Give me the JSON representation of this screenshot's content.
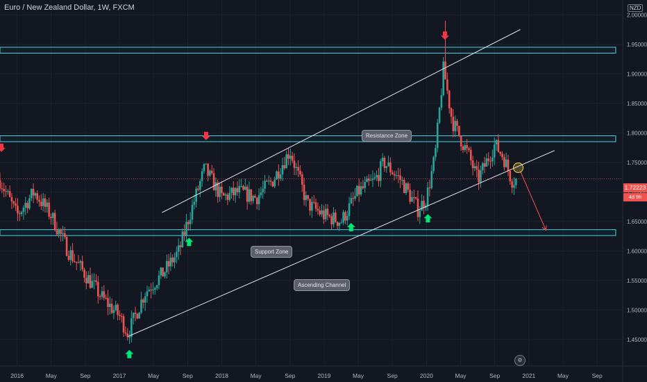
{
  "header": {
    "title": "Euro / New Zealand Dollar, 1W, FXCM",
    "currency": "NZD"
  },
  "price_axis": {
    "last_price": "1.72223",
    "countdown": "4d 9h",
    "ticks": [
      "2.00000",
      "1.95000",
      "1.90000",
      "1.85000",
      "1.80000",
      "1.75000",
      "1.70000",
      "1.65000",
      "1.60000",
      "1.55000",
      "1.50000",
      "1.45000"
    ]
  },
  "time_axis": {
    "ticks": [
      "2016",
      "May",
      "Sep",
      "2017",
      "May",
      "Sep",
      "2018",
      "May",
      "Sep",
      "2019",
      "May",
      "Sep",
      "2020",
      "May",
      "Sep",
      "2021",
      "May",
      "Sep"
    ]
  },
  "annotations": {
    "resistance": "Resistance Zone",
    "support": "Support Zone",
    "channel": "Ascending Channel"
  },
  "chart_data": {
    "type": "candlestick",
    "symbol": "EURNZD",
    "timeframe": "1W",
    "ylim": [
      1.405,
      2.025
    ],
    "xlim": [
      "2015-11",
      "2021-12"
    ],
    "grid": true,
    "approx_close_path": [
      {
        "date": "2015-11",
        "price": 1.72
      },
      {
        "date": "2016-01",
        "price": 1.66
      },
      {
        "date": "2016-03",
        "price": 1.7
      },
      {
        "date": "2016-05",
        "price": 1.66
      },
      {
        "date": "2016-07",
        "price": 1.6
      },
      {
        "date": "2016-09",
        "price": 1.56
      },
      {
        "date": "2016-11",
        "price": 1.52
      },
      {
        "date": "2017-01",
        "price": 1.49
      },
      {
        "date": "2017-02",
        "price": 1.46
      },
      {
        "date": "2017-04",
        "price": 1.53
      },
      {
        "date": "2017-06",
        "price": 1.56
      },
      {
        "date": "2017-08",
        "price": 1.6
      },
      {
        "date": "2017-09",
        "price": 1.65
      },
      {
        "date": "2017-11",
        "price": 1.74
      },
      {
        "date": "2018-01",
        "price": 1.69
      },
      {
        "date": "2018-03",
        "price": 1.7
      },
      {
        "date": "2018-05",
        "price": 1.69
      },
      {
        "date": "2018-07",
        "price": 1.72
      },
      {
        "date": "2018-09",
        "price": 1.77
      },
      {
        "date": "2018-11",
        "price": 1.68
      },
      {
        "date": "2019-01",
        "price": 1.66
      },
      {
        "date": "2019-03",
        "price": 1.65
      },
      {
        "date": "2019-05",
        "price": 1.7
      },
      {
        "date": "2019-07",
        "price": 1.72
      },
      {
        "date": "2019-08",
        "price": 1.75
      },
      {
        "date": "2019-10",
        "price": 1.72
      },
      {
        "date": "2019-12",
        "price": 1.67
      },
      {
        "date": "2020-01",
        "price": 1.69
      },
      {
        "date": "2020-02",
        "price": 1.76
      },
      {
        "date": "2020-03",
        "price": 1.91
      },
      {
        "date": "2020-04",
        "price": 1.82
      },
      {
        "date": "2020-06",
        "price": 1.76
      },
      {
        "date": "2020-07",
        "price": 1.72
      },
      {
        "date": "2020-09",
        "price": 1.78
      },
      {
        "date": "2020-10",
        "price": 1.76
      },
      {
        "date": "2020-11",
        "price": 1.72
      }
    ],
    "spike_high": {
      "date": "2020-03",
      "price": 1.99
    },
    "zones": [
      {
        "name": "Upper Zone",
        "from": 1.935,
        "to": 1.945
      },
      {
        "name": "Resistance Zone",
        "from": 1.785,
        "to": 1.795
      },
      {
        "name": "Support Zone",
        "from": 1.626,
        "to": 1.636
      }
    ],
    "channel": {
      "upper": [
        {
          "date": "2017-06",
          "price": 1.665
        },
        {
          "date": "2020-12",
          "price": 1.975
        }
      ],
      "lower": [
        {
          "date": "2017-02",
          "price": 1.455
        },
        {
          "date": "2021-04",
          "price": 1.77
        }
      ]
    },
    "arrows_down": [
      "2015-11",
      "2017-11",
      "2020-03"
    ],
    "arrows_up": [
      "2017-02",
      "2017-09",
      "2019-04",
      "2020-01"
    ],
    "forecast": {
      "from": {
        "date": "2020-12",
        "price": 1.735
      },
      "to": {
        "date": "2021-03",
        "price": 1.635
      }
    }
  }
}
